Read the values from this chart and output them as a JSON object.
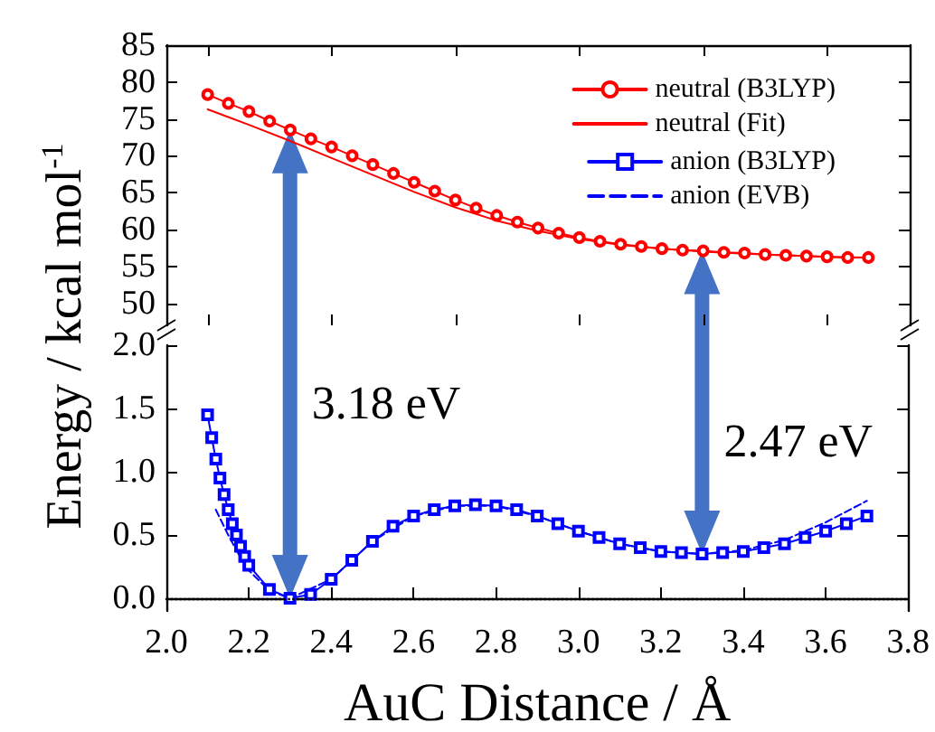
{
  "chart_data": [
    {
      "type": "line",
      "xlim": [
        2.0,
        3.8
      ],
      "ylim": [
        47,
        85
      ],
      "yticks": [
        50,
        55,
        60,
        65,
        70,
        75,
        80,
        85
      ],
      "tick_labels": "y",
      "legend": "top right",
      "series": [
        {
          "name": "neutral (B3LYP)",
          "color": "#ff0000",
          "marker": "circle",
          "x": [
            2.1,
            2.15,
            2.2,
            2.25,
            2.3,
            2.35,
            2.4,
            2.45,
            2.5,
            2.55,
            2.6,
            2.65,
            2.7,
            2.75,
            2.8,
            2.85,
            2.9,
            2.95,
            3.0,
            3.05,
            3.1,
            3.15,
            3.2,
            3.25,
            3.3,
            3.35,
            3.4,
            3.45,
            3.5,
            3.55,
            3.6,
            3.65,
            3.7
          ],
          "values": [
            78.3,
            77.1,
            76.0,
            74.7,
            73.5,
            72.3,
            71.2,
            70.0,
            68.8,
            67.6,
            66.4,
            65.2,
            64.0,
            62.9,
            61.9,
            61.0,
            60.2,
            59.5,
            58.9,
            58.4,
            58.0,
            57.7,
            57.4,
            57.2,
            57.1,
            56.9,
            56.8,
            56.6,
            56.5,
            56.4,
            56.3,
            56.2,
            56.2
          ]
        },
        {
          "name": "neutral (Fit)",
          "color": "#ff0000",
          "marker": "none",
          "x": [
            2.1,
            2.2,
            2.3,
            2.4,
            2.5,
            2.6,
            2.7,
            2.8,
            2.9,
            3.0,
            3.1,
            3.2,
            3.3,
            3.4,
            3.5,
            3.6,
            3.7
          ],
          "values": [
            76.3,
            74.2,
            72.0,
            69.7,
            67.4,
            65.1,
            63.0,
            61.2,
            59.8,
            58.7,
            57.9,
            57.4,
            57.0,
            56.7,
            56.5,
            56.3,
            56.2
          ]
        }
      ]
    },
    {
      "type": "line",
      "xlabel": "AuC Distance / Å",
      "ylabel": "Energy / kcal mol$^{-1}$",
      "xlim": [
        2.0,
        3.8
      ],
      "ylim": [
        -0.1,
        2.0
      ],
      "xticks": [
        {
          "value": 2.0,
          "label": "2.0"
        },
        {
          "value": 2.2,
          "label": "2.2"
        },
        {
          "value": 2.4,
          "label": "2.4"
        },
        {
          "value": 2.6,
          "label": "2.6"
        },
        {
          "value": 2.8,
          "label": "2.8"
        },
        {
          "value": 3.0,
          "label": "3.0"
        },
        {
          "value": 3.2,
          "label": "3.2"
        },
        {
          "value": 3.4,
          "label": "3.4"
        },
        {
          "value": 3.6,
          "label": "3.6"
        },
        {
          "value": 3.8,
          "label": "3.8"
        }
      ],
      "yticks": [
        {
          "value": 0,
          "label": "0.0"
        },
        {
          "value": 0.5,
          "label": "0.5"
        },
        {
          "value": 1,
          "label": "1.0"
        },
        {
          "value": 1.5,
          "label": "1.5"
        },
        {
          "value": 2,
          "label": "2.0"
        }
      ],
      "legend": "top right",
      "ref_lines": [
        {
          "axis": "y",
          "value": 0,
          "color": "#000000",
          "line_style": "dotted"
        }
      ],
      "annotations": [
        "3.18 eV",
        "2.47 eV"
      ],
      "series": [
        {
          "name": "anion (B3LYP)",
          "color": "#0000ff",
          "marker": "square",
          "x": [
            2.1,
            2.11,
            2.12,
            2.13,
            2.14,
            2.15,
            2.16,
            2.17,
            2.18,
            2.19,
            2.2,
            2.25,
            2.3,
            2.35,
            2.4,
            2.45,
            2.5,
            2.55,
            2.6,
            2.65,
            2.7,
            2.75,
            2.8,
            2.85,
            2.9,
            2.95,
            3.0,
            3.05,
            3.1,
            3.15,
            3.2,
            3.25,
            3.3,
            3.35,
            3.4,
            3.45,
            3.5,
            3.55,
            3.6,
            3.65,
            3.7
          ],
          "values": [
            1.45,
            1.27,
            1.1,
            0.95,
            0.82,
            0.7,
            0.59,
            0.5,
            0.41,
            0.33,
            0.26,
            0.07,
            0.0,
            0.03,
            0.15,
            0.3,
            0.45,
            0.57,
            0.65,
            0.7,
            0.73,
            0.74,
            0.73,
            0.7,
            0.65,
            0.59,
            0.53,
            0.48,
            0.43,
            0.4,
            0.37,
            0.36,
            0.35,
            0.36,
            0.37,
            0.4,
            0.43,
            0.48,
            0.53,
            0.59,
            0.65
          ]
        },
        {
          "name": "anion (EVB)",
          "color": "#0000ff",
          "marker": "none",
          "line_style": "dashed",
          "x": [
            2.12,
            2.15,
            2.18,
            2.2,
            2.25,
            2.3,
            2.4,
            2.5,
            2.6,
            2.7,
            2.8,
            2.9,
            3.0,
            3.1,
            3.2,
            3.3,
            3.4,
            3.5,
            3.6,
            3.7
          ],
          "values": [
            0.7,
            0.5,
            0.32,
            0.22,
            0.06,
            0.0,
            0.15,
            0.45,
            0.65,
            0.73,
            0.73,
            0.65,
            0.53,
            0.43,
            0.37,
            0.35,
            0.38,
            0.46,
            0.6,
            0.77
          ]
        }
      ]
    }
  ]
}
